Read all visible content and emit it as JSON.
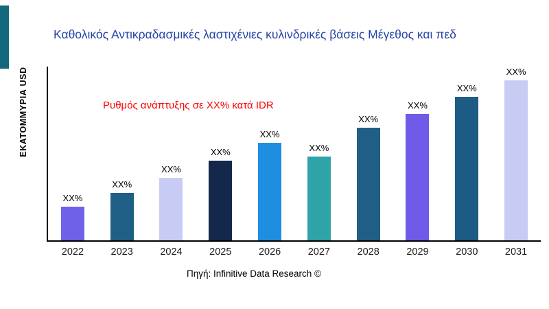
{
  "chart_data": {
    "type": "bar",
    "title": "Καθολικός Αντικραδασμικές λαστιχένιες κυλινδρικές βάσεις Μέγεθος και πεδ",
    "title_color": "#2743A8",
    "ylabel": "ΕΚΑΤΟΜΜΥΡΙΑ USD",
    "xlabel": "",
    "annotation": {
      "text": "Ρυθμός ανάπτυξης σε XX% κατά IDR",
      "color": "#FF0000"
    },
    "source": "Πηγή: Infinitive Data Research ©",
    "categories": [
      "2022",
      "2023",
      "2024",
      "2025",
      "2026",
      "2027",
      "2028",
      "2029",
      "2030",
      "2031"
    ],
    "values": [
      48,
      68,
      90,
      115,
      140,
      121,
      162,
      182,
      207,
      230
    ],
    "value_labels": [
      "XX%",
      "XX%",
      "XX%",
      "XX%",
      "XX%",
      "XX%",
      "XX%",
      "XX%",
      "XX%",
      "XX%"
    ],
    "bar_colors": [
      "#6F61E8",
      "#1F5F85",
      "#C8CCF4",
      "#14284B",
      "#1E8FE0",
      "#2EA3A8",
      "#1F5F85",
      "#6F5BE8",
      "#1C5B84",
      "#C8CCF4"
    ],
    "ylim": [
      0,
      250
    ],
    "grid": false,
    "legend": false,
    "accent_stripe_color": "#15687C"
  }
}
